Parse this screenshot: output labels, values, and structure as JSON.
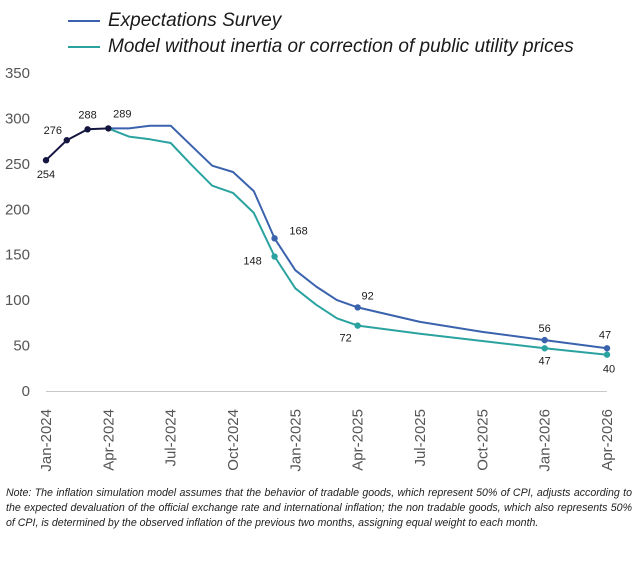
{
  "chart_data": {
    "type": "line",
    "title": "",
    "xlabel": "",
    "ylabel": "",
    "ylim": [
      0,
      350
    ],
    "yticks": [
      "0",
      "50",
      "100",
      "150",
      "200",
      "250",
      "300",
      "350"
    ],
    "xticks": [
      "Jan-2024",
      "Apr-2024",
      "Jul-2024",
      "Oct-2024",
      "Jan-2025",
      "Apr-2025",
      "Jul-2025",
      "Oct-2025",
      "Jan-2026",
      "Apr-2026"
    ],
    "grid": false,
    "legend_position": "top-left",
    "history": {
      "color": "#14163f",
      "points": [
        {
          "x": "Jan-2024",
          "y": 254
        },
        {
          "x": "Feb-2024",
          "y": 276
        },
        {
          "x": "Mar-2024",
          "y": 288
        },
        {
          "x": "Apr-2024",
          "y": 289
        }
      ]
    },
    "series": [
      {
        "name": "Expectations Survey",
        "color": "#3a62ad",
        "points": [
          {
            "x": "Apr-2024",
            "y": 289
          },
          {
            "x": "May-2024",
            "y": 289
          },
          {
            "x": "Jun-2024",
            "y": 292
          },
          {
            "x": "Jul-2024",
            "y": 292
          },
          {
            "x": "Aug-2024",
            "y": 270
          },
          {
            "x": "Sep-2024",
            "y": 248
          },
          {
            "x": "Oct-2024",
            "y": 241
          },
          {
            "x": "Nov-2024",
            "y": 220
          },
          {
            "x": "Dec-2024",
            "y": 168
          },
          {
            "x": "Jan-2025",
            "y": 133
          },
          {
            "x": "Feb-2025",
            "y": 115
          },
          {
            "x": "Mar-2025",
            "y": 100
          },
          {
            "x": "Apr-2025",
            "y": 92
          },
          {
            "x": "Jul-2025",
            "y": 76
          },
          {
            "x": "Oct-2025",
            "y": 65
          },
          {
            "x": "Jan-2026",
            "y": 56
          },
          {
            "x": "Apr-2026",
            "y": 47
          }
        ],
        "labeled": [
          {
            "x": "Dec-2024",
            "y": 168,
            "label": "168"
          },
          {
            "x": "Apr-2025",
            "y": 92,
            "label": "92"
          },
          {
            "x": "Jan-2026",
            "y": 56,
            "label": "56"
          },
          {
            "x": "Apr-2026",
            "y": 47,
            "label": "47"
          }
        ]
      },
      {
        "name": "Model without inertia or correction of public utility prices",
        "color": "#2aa3a0",
        "points": [
          {
            "x": "Apr-2024",
            "y": 289
          },
          {
            "x": "May-2024",
            "y": 280
          },
          {
            "x": "Jun-2024",
            "y": 277
          },
          {
            "x": "Jul-2024",
            "y": 273
          },
          {
            "x": "Aug-2024",
            "y": 249
          },
          {
            "x": "Sep-2024",
            "y": 226
          },
          {
            "x": "Oct-2024",
            "y": 218
          },
          {
            "x": "Nov-2024",
            "y": 196
          },
          {
            "x": "Dec-2024",
            "y": 148
          },
          {
            "x": "Jan-2025",
            "y": 113
          },
          {
            "x": "Feb-2025",
            "y": 95
          },
          {
            "x": "Mar-2025",
            "y": 80
          },
          {
            "x": "Apr-2025",
            "y": 72
          },
          {
            "x": "Jul-2025",
            "y": 63
          },
          {
            "x": "Oct-2025",
            "y": 55
          },
          {
            "x": "Jan-2026",
            "y": 47
          },
          {
            "x": "Apr-2026",
            "y": 40
          }
        ],
        "labeled": [
          {
            "x": "Dec-2024",
            "y": 148,
            "label": "148"
          },
          {
            "x": "Apr-2025",
            "y": 72,
            "label": "72"
          },
          {
            "x": "Jan-2026",
            "y": 47,
            "label": "47"
          },
          {
            "x": "Apr-2026",
            "y": 40,
            "label": "40"
          }
        ]
      }
    ],
    "history_labels": [
      {
        "x": "Jan-2024",
        "y": 254,
        "label": "254"
      },
      {
        "x": "Feb-2024",
        "y": 276,
        "label": "276"
      },
      {
        "x": "Mar-2024",
        "y": 288,
        "label": "288"
      },
      {
        "x": "Apr-2024",
        "y": 289,
        "label": "289"
      }
    ]
  },
  "legend": [
    {
      "label": "Expectations Survey",
      "color": "#3a62ad"
    },
    {
      "label": "Model without inertia or correction of public utility prices",
      "color": "#2aa3a0"
    }
  ],
  "note": "Note: The inflation simulation model assumes that the behavior of tradable goods, which represent 50% of CPI, adjusts according to the expected devaluation of the official exchange rate and international inflation; the non tradable goods, which also represents 50% of CPI, is determined by the observed inflation of the previous two months, assigning equal weight to each month."
}
